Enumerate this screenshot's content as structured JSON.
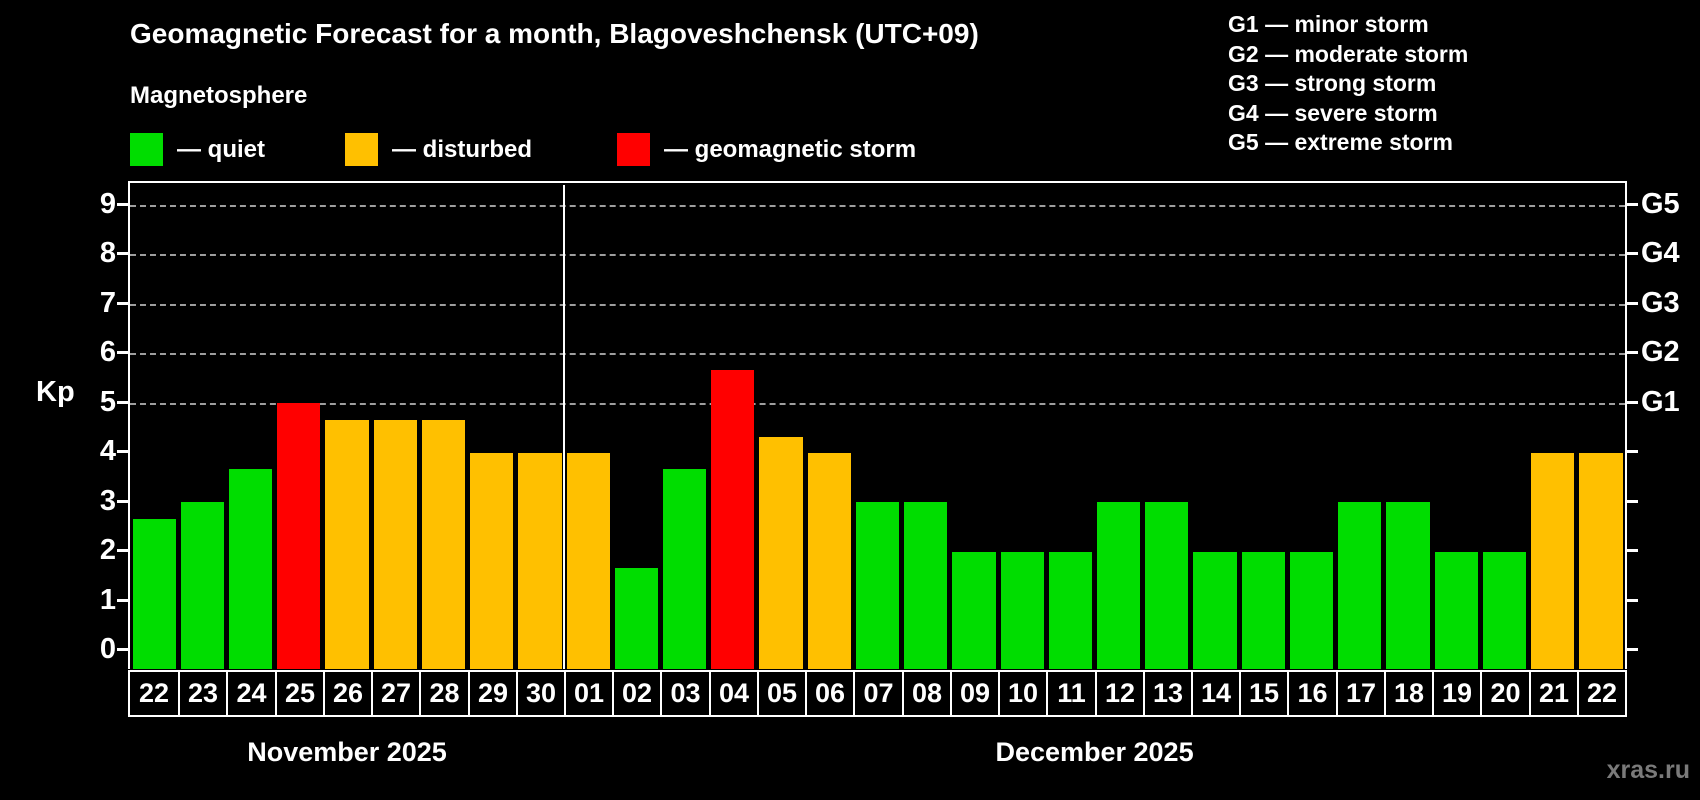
{
  "title": "Geomagnetic Forecast for a month, Blagoveshchensk (UTC+09)",
  "subtitle": "Magnetosphere",
  "kp_axis_label": "Kp",
  "watermark": "xras.ru",
  "colors": {
    "quiet": "#00dd00",
    "disturbed": "#ffc000",
    "storm": "#ff0000",
    "grid": "#9e9e9e",
    "axis": "#ffffff",
    "watermark": "#7a7a7a"
  },
  "legend": [
    {
      "status": "quiet",
      "label": "— quiet"
    },
    {
      "status": "disturbed",
      "label": "— disturbed"
    },
    {
      "status": "storm",
      "label": "— geomagnetic storm"
    }
  ],
  "g_scale_legend": [
    "G1 — minor storm",
    "G2 — moderate storm",
    "G3 — strong storm",
    "G4 — severe storm",
    "G5 — extreme storm"
  ],
  "chart_data": {
    "type": "bar",
    "title": "Geomagnetic Forecast for a month, Blagoveshchensk (UTC+09)",
    "xlabel": "",
    "ylabel": "Kp",
    "ylim": [
      0,
      9.4
    ],
    "yticks": [
      0,
      1,
      2,
      3,
      4,
      5,
      6,
      7,
      8,
      9
    ],
    "gridlines_at_kp": [
      5,
      6,
      7,
      8,
      9
    ],
    "grid": "dashed-horizontal",
    "legend_position": "top-left",
    "right_axis_labels": [
      {
        "label": "G1",
        "kp": 5
      },
      {
        "label": "G2",
        "kp": 6
      },
      {
        "label": "G3",
        "kp": 7
      },
      {
        "label": "G4",
        "kp": 8
      },
      {
        "label": "G5",
        "kp": 9
      }
    ],
    "months": [
      {
        "label": "November 2025",
        "bars": [
          {
            "day": "22",
            "kp": 2.67,
            "status": "quiet"
          },
          {
            "day": "23",
            "kp": 3.0,
            "status": "quiet"
          },
          {
            "day": "24",
            "kp": 3.67,
            "status": "quiet"
          },
          {
            "day": "25",
            "kp": 5.0,
            "status": "storm"
          },
          {
            "day": "26",
            "kp": 4.67,
            "status": "disturbed"
          },
          {
            "day": "27",
            "kp": 4.67,
            "status": "disturbed"
          },
          {
            "day": "28",
            "kp": 4.67,
            "status": "disturbed"
          },
          {
            "day": "29",
            "kp": 4.0,
            "status": "disturbed"
          },
          {
            "day": "30",
            "kp": 4.0,
            "status": "disturbed"
          }
        ]
      },
      {
        "label": "December 2025",
        "bars": [
          {
            "day": "01",
            "kp": 4.0,
            "status": "disturbed"
          },
          {
            "day": "02",
            "kp": 1.67,
            "status": "quiet"
          },
          {
            "day": "03",
            "kp": 3.67,
            "status": "quiet"
          },
          {
            "day": "04",
            "kp": 5.67,
            "status": "storm"
          },
          {
            "day": "05",
            "kp": 4.33,
            "status": "disturbed"
          },
          {
            "day": "06",
            "kp": 4.0,
            "status": "disturbed"
          },
          {
            "day": "07",
            "kp": 3.0,
            "status": "quiet"
          },
          {
            "day": "08",
            "kp": 3.0,
            "status": "quiet"
          },
          {
            "day": "09",
            "kp": 2.0,
            "status": "quiet"
          },
          {
            "day": "10",
            "kp": 2.0,
            "status": "quiet"
          },
          {
            "day": "11",
            "kp": 2.0,
            "status": "quiet"
          },
          {
            "day": "12",
            "kp": 3.0,
            "status": "quiet"
          },
          {
            "day": "13",
            "kp": 3.0,
            "status": "quiet"
          },
          {
            "day": "14",
            "kp": 2.0,
            "status": "quiet"
          },
          {
            "day": "15",
            "kp": 2.0,
            "status": "quiet"
          },
          {
            "day": "16",
            "kp": 2.0,
            "status": "quiet"
          },
          {
            "day": "17",
            "kp": 3.0,
            "status": "quiet"
          },
          {
            "day": "18",
            "kp": 3.0,
            "status": "quiet"
          },
          {
            "day": "19",
            "kp": 2.0,
            "status": "quiet"
          },
          {
            "day": "20",
            "kp": 2.0,
            "status": "quiet"
          },
          {
            "day": "21",
            "kp": 4.0,
            "status": "disturbed"
          },
          {
            "day": "22",
            "kp": 4.0,
            "status": "disturbed"
          }
        ]
      }
    ]
  }
}
